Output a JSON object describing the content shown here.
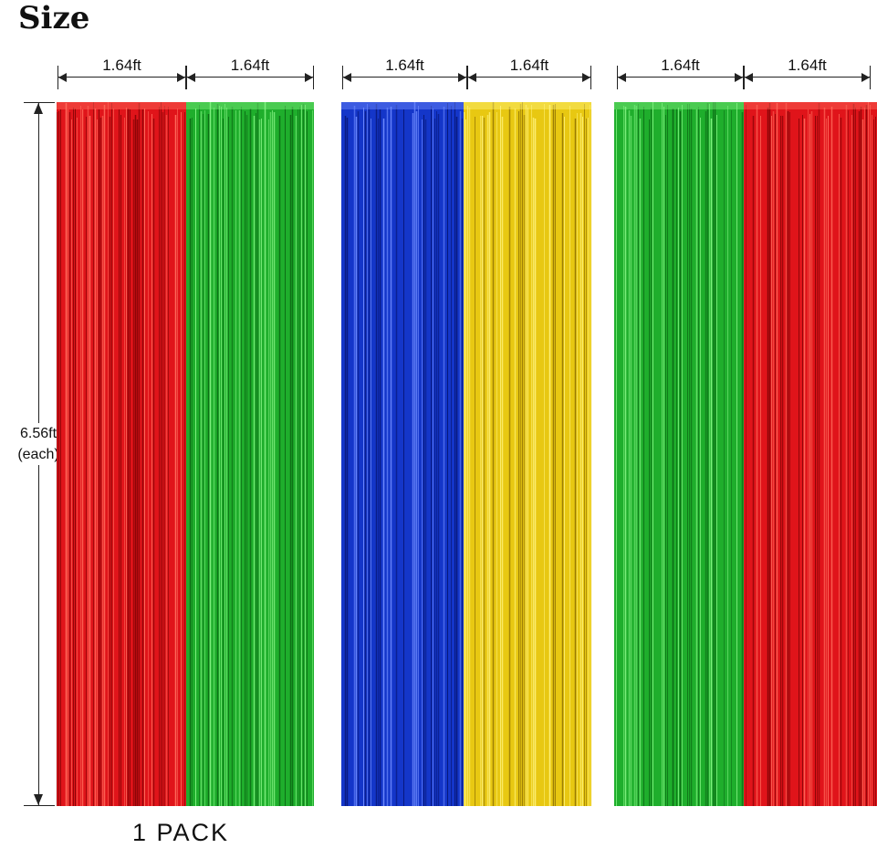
{
  "title": "Size",
  "width_label": "1.64ft",
  "height_label_value": "6.56ft",
  "height_label_note": "(each)",
  "pack_label": "1 PACK",
  "panels": [
    {
      "name": "red",
      "color": "#e0141a",
      "light": "#ff6a5a",
      "dark": "#8a0507"
    },
    {
      "name": "green",
      "color": "#1fae2c",
      "light": "#7ef07e",
      "dark": "#0c6b15"
    },
    {
      "name": "blue",
      "color": "#1436c9",
      "light": "#6f8bff",
      "dark": "#08187a"
    },
    {
      "name": "gold",
      "color": "#e8c812",
      "light": "#fff27a",
      "dark": "#9a7c05"
    },
    {
      "name": "green",
      "color": "#1fae2c",
      "light": "#7ef07e",
      "dark": "#0c6b15"
    },
    {
      "name": "red",
      "color": "#e0141a",
      "light": "#ff6a5a",
      "dark": "#8a0507"
    }
  ]
}
